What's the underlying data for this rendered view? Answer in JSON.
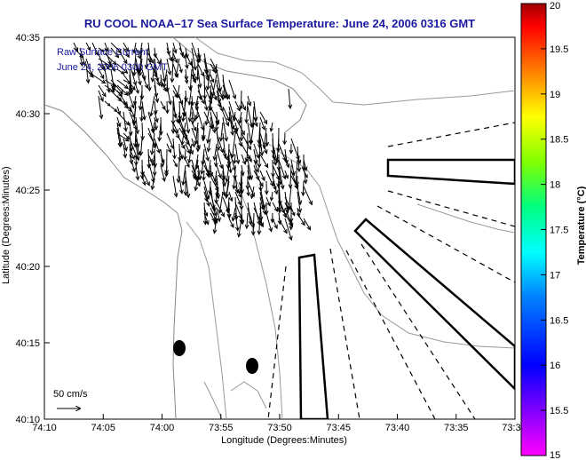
{
  "title": "RU COOL  NOAA–17  Sea Surface Temperature:  June 24, 2006 0316 GMT",
  "legend": {
    "line1": "Raw Surface Current",
    "line2": "June 24, 2006 0300 GMT",
    "scale_label": "50 cm/s"
  },
  "axes": {
    "xlabel": "Longitude (Degrees:Minutes)",
    "ylabel": "Latitude (Degrees:Minutes)",
    "xticks": [
      "74:10",
      "74:05",
      "74:00",
      "73:55",
      "73:50",
      "73:45",
      "73:40",
      "73:35",
      "73:3"
    ],
    "yticks": [
      "40:35",
      "40:30",
      "40:25",
      "40:20",
      "40:15",
      "40:10"
    ]
  },
  "colorbar": {
    "label": "Temperature (°C)",
    "ticks": [
      "20",
      "19.5",
      "19",
      "18.5",
      "18",
      "17.5",
      "17",
      "16.5",
      "16",
      "15.5",
      "15"
    ],
    "min": 15,
    "max": 20
  },
  "colors": {
    "title": "#1a1aa0",
    "frame": "#000000",
    "contour": "#888888"
  }
}
